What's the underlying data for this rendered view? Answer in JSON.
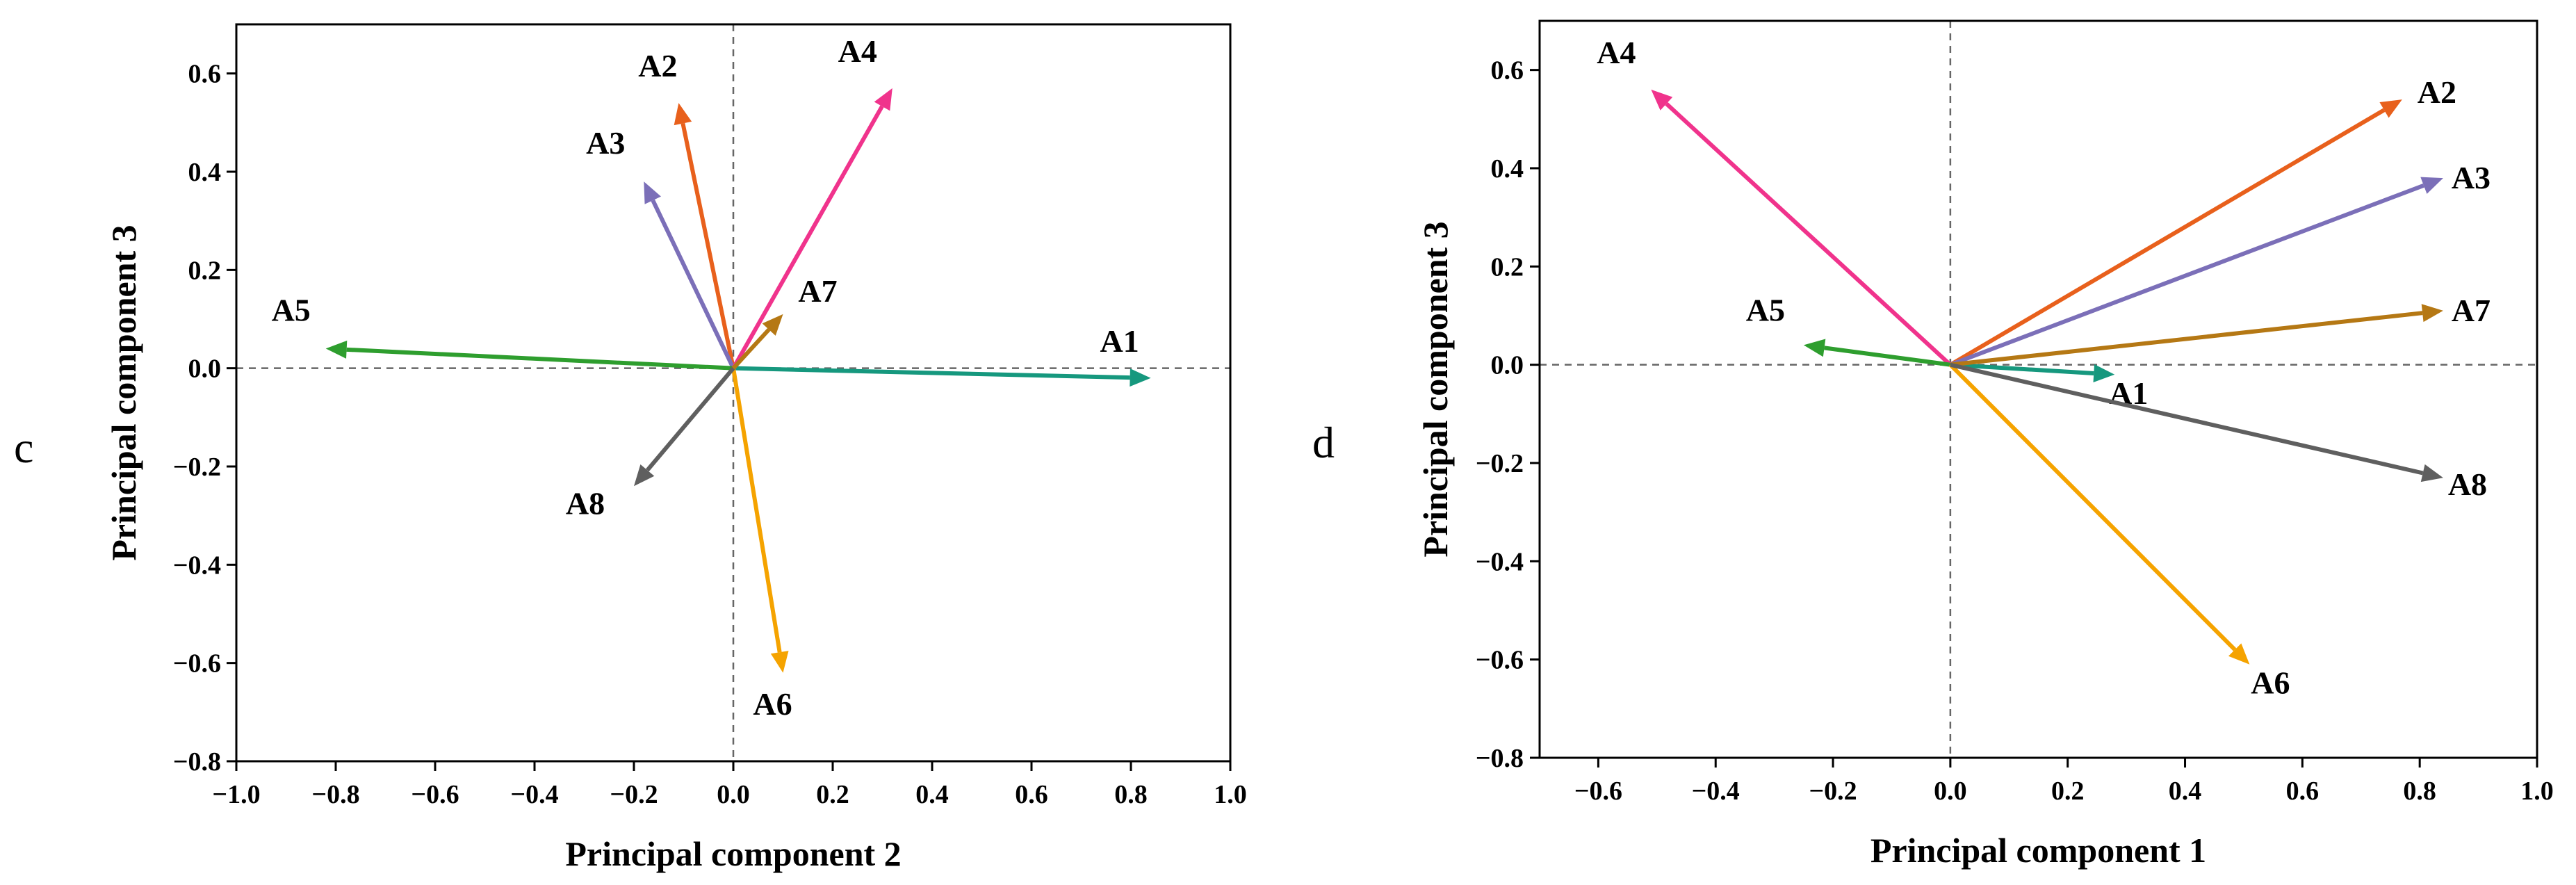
{
  "chart_data": [
    {
      "type": "biplot",
      "panel_label": "c",
      "xlabel": "Principal component 2",
      "ylabel": "Principal component 3",
      "xlim": [
        -1.0,
        1.0
      ],
      "ylim": [
        -0.8,
        0.7
      ],
      "xticks": [
        "−1.0",
        "−0.8",
        "−0.6",
        "−0.4",
        "−0.2",
        "0.0",
        "0.2",
        "0.4",
        "0.6",
        "0.8",
        "1.0"
      ],
      "yticks": [
        "−0.8",
        "−0.6",
        "−0.4",
        "−0.2",
        "0.0",
        "0.2",
        "0.4",
        "0.6"
      ],
      "vectors": [
        {
          "name": "A1",
          "x": 0.84,
          "y": -0.02,
          "color": "#16987e"
        },
        {
          "name": "A2",
          "x": -0.11,
          "y": 0.54,
          "color": "#e8601c"
        },
        {
          "name": "A3",
          "x": -0.18,
          "y": 0.38,
          "color": "#7b6fb8"
        },
        {
          "name": "A4",
          "x": 0.32,
          "y": 0.57,
          "color": "#f0338c"
        },
        {
          "name": "A5",
          "x": -0.82,
          "y": 0.04,
          "color": "#2e9e2e"
        },
        {
          "name": "A6",
          "x": 0.1,
          "y": -0.62,
          "color": "#f5a300"
        },
        {
          "name": "A7",
          "x": 0.1,
          "y": 0.11,
          "color": "#b57814"
        },
        {
          "name": "A8",
          "x": -0.2,
          "y": -0.24,
          "color": "#5f5f5f"
        }
      ]
    },
    {
      "type": "biplot",
      "panel_label": "d",
      "xlabel": "Principal component 1",
      "ylabel": "Principal component 3",
      "xlim": [
        -0.7,
        1.0
      ],
      "ylim": [
        -0.8,
        0.7
      ],
      "xticks": [
        "−0.6",
        "−0.4",
        "−0.2",
        "0.0",
        "0.2",
        "0.4",
        "0.6",
        "0.8",
        "1.0"
      ],
      "yticks": [
        "−0.8",
        "−0.6",
        "−0.4",
        "−0.2",
        "0.0",
        "0.2",
        "0.4",
        "0.6"
      ],
      "vectors": [
        {
          "name": "A1",
          "x": 0.28,
          "y": -0.02,
          "color": "#16987e"
        },
        {
          "name": "A2",
          "x": 0.77,
          "y": 0.54,
          "color": "#e8601c"
        },
        {
          "name": "A3",
          "x": 0.84,
          "y": 0.38,
          "color": "#7b6fb8"
        },
        {
          "name": "A4",
          "x": -0.51,
          "y": 0.56,
          "color": "#f0338c"
        },
        {
          "name": "A5",
          "x": -0.25,
          "y": 0.04,
          "color": "#2e9e2e"
        },
        {
          "name": "A6",
          "x": 0.51,
          "y": -0.61,
          "color": "#f5a300"
        },
        {
          "name": "A7",
          "x": 0.84,
          "y": 0.11,
          "color": "#b57814"
        },
        {
          "name": "A8",
          "x": 0.84,
          "y": -0.23,
          "color": "#5f5f5f"
        }
      ]
    }
  ]
}
